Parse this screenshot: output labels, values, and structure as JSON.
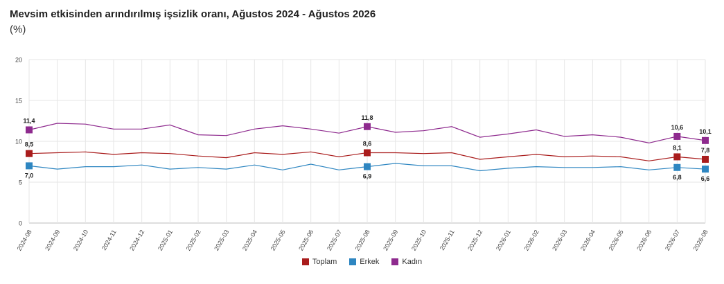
{
  "chart_data": {
    "type": "line",
    "title": "Mevsim etkisinden arındırılmış işsizlik oranı, Ağustos 2024 - Ağustos 2026",
    "subtitle": "(%)",
    "xlabel": "",
    "ylabel": "",
    "ylim": [
      0,
      20
    ],
    "yticks": [
      "0",
      "5",
      "10",
      "15",
      "20"
    ],
    "grid": true,
    "legend_position": "bottom",
    "categories": [
      "2024-08",
      "2024-09",
      "2024-10",
      "2024-11",
      "2024-12",
      "2025-01",
      "2025-02",
      "2025-03",
      "2025-04",
      "2025-05",
      "2025-06",
      "2025-07",
      "2025-08",
      "2025-09",
      "2025-10",
      "2025-11",
      "2025-12",
      "2026-01",
      "2026-02",
      "2026-03",
      "2026-04",
      "2026-05",
      "2026-06",
      "2026-07",
      "2026-08"
    ],
    "series": [
      {
        "name": "Toplam",
        "color": "#a91c1c",
        "values": [
          8.5,
          8.6,
          8.7,
          8.4,
          8.6,
          8.5,
          8.2,
          8.0,
          8.6,
          8.4,
          8.7,
          8.1,
          8.6,
          8.6,
          8.5,
          8.6,
          7.8,
          8.1,
          8.4,
          8.1,
          8.2,
          8.1,
          7.6,
          8.1,
          7.8
        ],
        "labels": {
          "0": "8,5",
          "12": "8,6",
          "23": "8,1",
          "24": "7,8"
        }
      },
      {
        "name": "Erkek",
        "color": "#2e86c1",
        "values": [
          7.0,
          6.6,
          6.9,
          6.9,
          7.1,
          6.6,
          6.8,
          6.6,
          7.1,
          6.5,
          7.2,
          6.5,
          6.9,
          7.3,
          7.0,
          7.0,
          6.4,
          6.7,
          6.9,
          6.8,
          6.8,
          6.9,
          6.5,
          6.8,
          6.6
        ],
        "labels": {
          "0": "7,0",
          "12": "6,9",
          "23": "6,8",
          "24": "6,6"
        }
      },
      {
        "name": "Kadın",
        "color": "#8e2a8e",
        "values": [
          11.4,
          12.2,
          12.1,
          11.5,
          11.5,
          12.0,
          10.8,
          10.7,
          11.5,
          11.9,
          11.5,
          11.0,
          11.8,
          11.1,
          11.3,
          11.8,
          10.5,
          10.9,
          11.4,
          10.6,
          10.8,
          10.5,
          9.8,
          10.6,
          10.1
        ],
        "labels": {
          "0": "11,4",
          "12": "11,8",
          "23": "10,6",
          "24": "10,1"
        }
      }
    ],
    "highlight_indices": [
      0,
      12,
      23,
      24
    ]
  }
}
